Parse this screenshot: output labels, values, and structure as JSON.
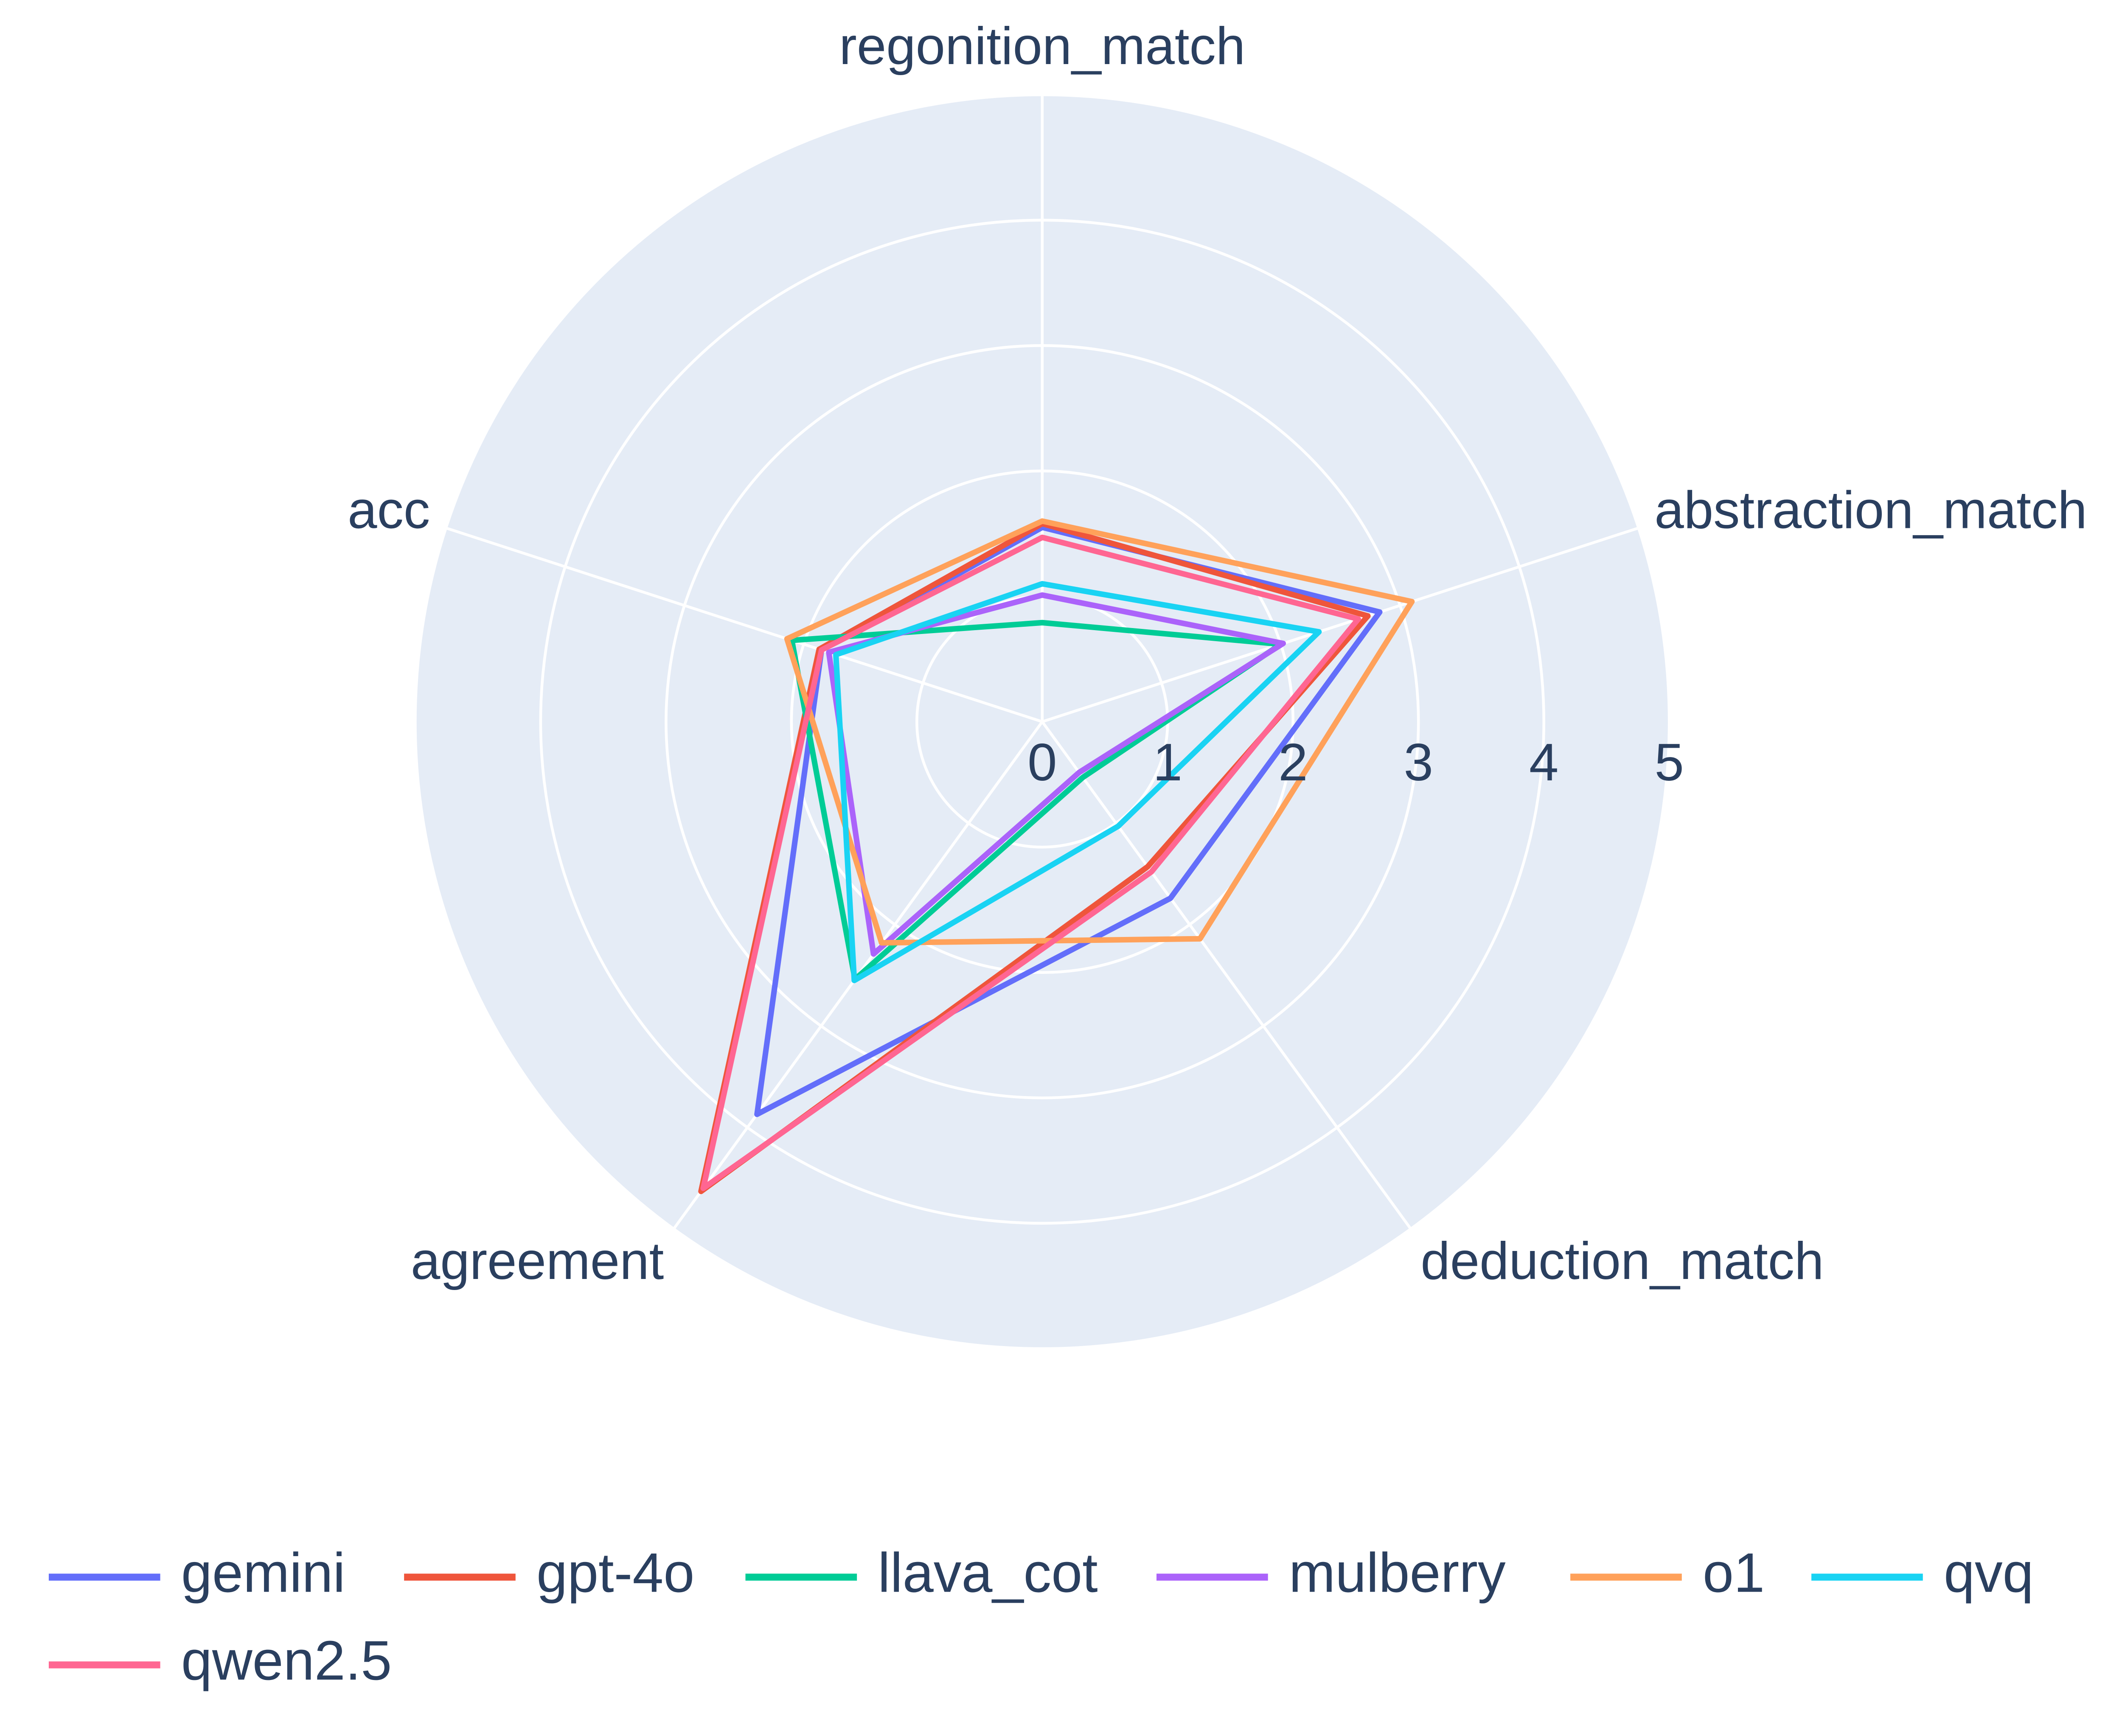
{
  "chart_data": {
    "type": "radar",
    "categories": [
      "regonition_match",
      "abstraction_match",
      "deduction_match",
      "agreement",
      "acc"
    ],
    "rlim": [
      0,
      5
    ],
    "rticks": [
      0,
      1,
      2,
      3,
      4,
      5
    ],
    "grid": true,
    "legend": "bottom",
    "series": [
      {
        "name": "gemini",
        "color": "#636efa",
        "values": [
          1.55,
          2.83,
          1.74,
          3.87,
          1.85
        ]
      },
      {
        "name": "gpt-4o",
        "color": "#ef553b",
        "values": [
          1.58,
          2.73,
          1.43,
          4.63,
          1.87
        ]
      },
      {
        "name": "llava_cot",
        "color": "#00cc96",
        "values": [
          0.79,
          2.0,
          0.55,
          2.54,
          2.1
        ]
      },
      {
        "name": "mulberry",
        "color": "#ab63fa",
        "values": [
          1.01,
          2.02,
          0.5,
          2.29,
          1.79
        ]
      },
      {
        "name": "o1",
        "color": "#ffa15a",
        "values": [
          1.6,
          3.1,
          2.14,
          2.18,
          2.14
        ]
      },
      {
        "name": "qvq",
        "color": "#19d3f3",
        "values": [
          1.1,
          2.32,
          1.03,
          2.55,
          1.73
        ]
      },
      {
        "name": "qwen2.5",
        "color": "#ff6692",
        "values": [
          1.47,
          2.65,
          1.48,
          4.6,
          1.85
        ]
      }
    ]
  }
}
